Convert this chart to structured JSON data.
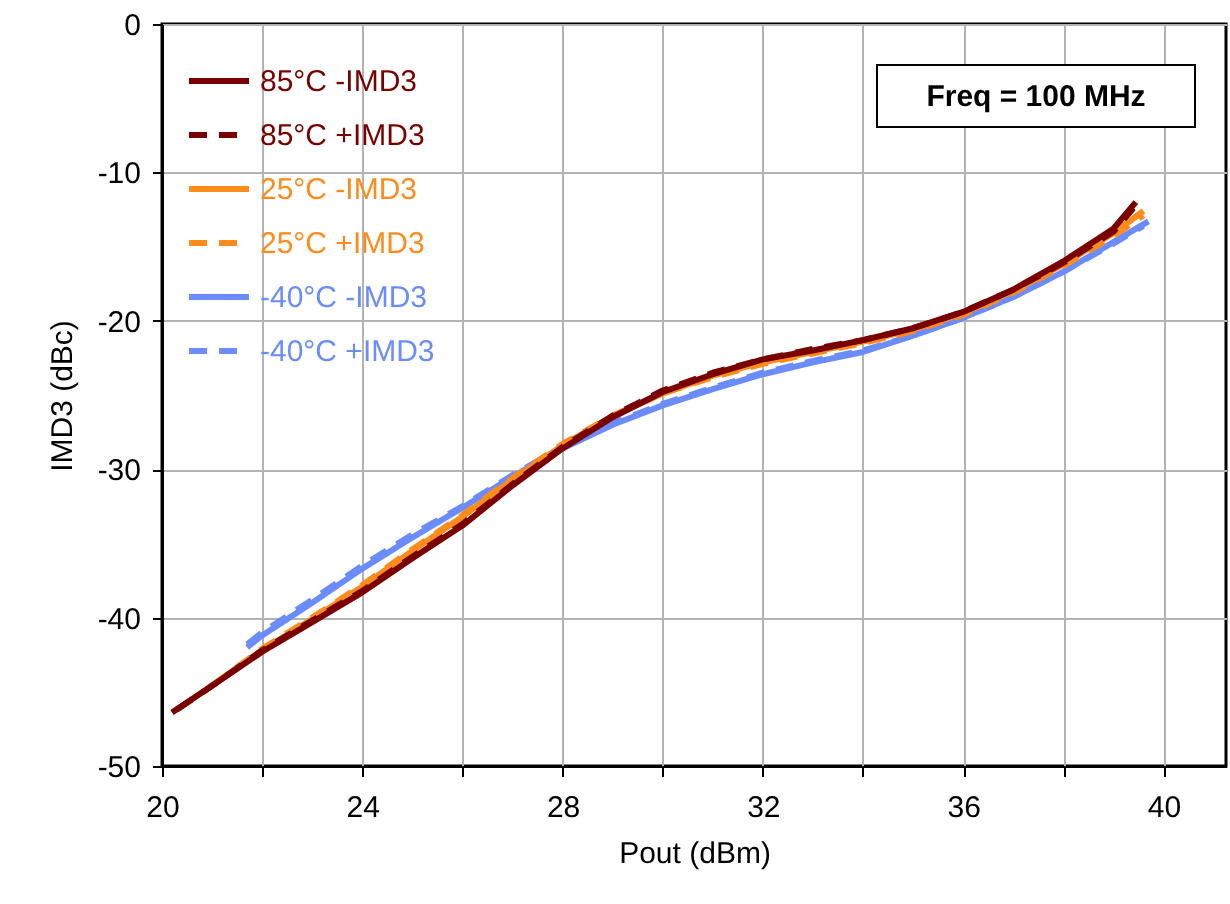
{
  "chart_data": {
    "type": "line",
    "xlabel": "Pout (dBm)",
    "ylabel": "IMD3 (dBc)",
    "annotations": [
      "Freq = 100 MHz"
    ],
    "xlim": [
      20,
      41.25
    ],
    "ylim": [
      -50,
      0
    ],
    "xticks": [
      20,
      {
        "value": 22,
        "label": null
      },
      24,
      {
        "value": 26,
        "label": null
      },
      28,
      {
        "value": 30,
        "label": null
      },
      32,
      {
        "value": 34,
        "label": null
      },
      36,
      {
        "value": 38,
        "label": null
      },
      40
    ],
    "yticks": [
      -50,
      -40,
      -30,
      -20,
      -10,
      0
    ],
    "grid": true,
    "legend": "top left",
    "series": [
      {
        "name": "85°C -IMD3",
        "color": "#7a0000",
        "line_style": "solid",
        "x": [
          20.2,
          21,
          22,
          23,
          24,
          25,
          26,
          27,
          28,
          29,
          30,
          31,
          32,
          33,
          34,
          35,
          36,
          37,
          38,
          39,
          39.45
        ],
        "values": [
          -46.4,
          -44.6,
          -42.3,
          -40.3,
          -38.3,
          -36.0,
          -33.8,
          -31.1,
          -28.6,
          -26.5,
          -24.8,
          -23.6,
          -22.6,
          -22.0,
          -21.3,
          -20.5,
          -19.4,
          -17.9,
          -16.0,
          -13.8,
          -12.0
        ]
      },
      {
        "name": "85°C +IMD3",
        "color": "#7a0000",
        "line_style": "dashed",
        "x": [
          20.3,
          21,
          22,
          23,
          24,
          25,
          26,
          27,
          28,
          29,
          30,
          31,
          32,
          33,
          34,
          35,
          36,
          37,
          38,
          39,
          39.4
        ],
        "values": [
          -46.2,
          -44.6,
          -42.2,
          -40.2,
          -38.2,
          -35.9,
          -33.7,
          -31.0,
          -28.5,
          -26.4,
          -24.7,
          -23.5,
          -22.6,
          -21.9,
          -21.3,
          -20.5,
          -19.4,
          -17.9,
          -16.1,
          -14.0,
          -12.4
        ]
      },
      {
        "name": "25°C -IMD3",
        "color": "#ff8c1a",
        "line_style": "solid",
        "x": [
          20.9,
          22,
          23,
          24,
          25,
          26,
          27,
          28,
          29,
          30,
          31,
          32,
          33,
          34,
          35,
          36,
          37,
          38,
          39,
          39.6
        ],
        "values": [
          -44.8,
          -42.2,
          -40.1,
          -37.9,
          -35.5,
          -33.2,
          -30.7,
          -28.4,
          -26.4,
          -24.9,
          -23.7,
          -22.8,
          -22.1,
          -21.4,
          -20.6,
          -19.5,
          -18.0,
          -16.2,
          -14.1,
          -12.6
        ]
      },
      {
        "name": "25°C +IMD3",
        "color": "#ff8c1a",
        "line_style": "dashed",
        "x": [
          21.0,
          22,
          23,
          24,
          25,
          26,
          27,
          28,
          29,
          30,
          31,
          32,
          33,
          34,
          35,
          36,
          37,
          38,
          39,
          39.6
        ],
        "values": [
          -44.6,
          -42.1,
          -40.0,
          -37.8,
          -35.4,
          -33.1,
          -30.6,
          -28.3,
          -26.4,
          -24.9,
          -23.8,
          -22.9,
          -22.2,
          -21.5,
          -20.7,
          -19.6,
          -18.1,
          -16.3,
          -14.3,
          -12.9
        ]
      },
      {
        "name": "-40°C -IMD3",
        "color": "#6a8cff",
        "line_style": "solid",
        "x": [
          21.7,
          22,
          23,
          24,
          25,
          26,
          27,
          28,
          29,
          30,
          31,
          32,
          33,
          34,
          35,
          36,
          37,
          38,
          39,
          39.7
        ],
        "values": [
          -42.0,
          -41.2,
          -39.0,
          -36.7,
          -34.6,
          -32.6,
          -30.5,
          -28.6,
          -27.0,
          -25.7,
          -24.6,
          -23.6,
          -22.8,
          -22.1,
          -21.0,
          -19.8,
          -18.4,
          -16.7,
          -14.7,
          -13.3
        ]
      },
      {
        "name": "-40°C +IMD3",
        "color": "#6a8cff",
        "line_style": "dashed",
        "x": [
          21.7,
          22,
          23,
          24,
          25,
          26,
          27,
          28,
          29,
          30,
          31,
          32,
          33,
          34,
          35,
          36,
          37,
          38,
          39,
          39.6
        ],
        "values": [
          -41.8,
          -41.0,
          -38.8,
          -36.5,
          -34.4,
          -32.5,
          -30.4,
          -28.5,
          -26.9,
          -25.6,
          -24.5,
          -23.5,
          -22.7,
          -22.0,
          -21.0,
          -19.8,
          -18.4,
          -16.7,
          -14.8,
          -13.6
        ]
      }
    ]
  }
}
